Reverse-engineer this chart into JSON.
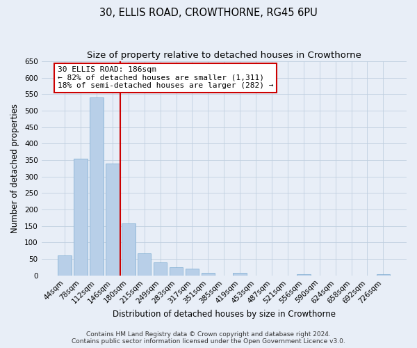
{
  "title": "30, ELLIS ROAD, CROWTHORNE, RG45 6PU",
  "subtitle": "Size of property relative to detached houses in Crowthorne",
  "xlabel": "Distribution of detached houses by size in Crowthorne",
  "ylabel": "Number of detached properties",
  "bar_labels": [
    "44sqm",
    "78sqm",
    "112sqm",
    "146sqm",
    "180sqm",
    "215sqm",
    "249sqm",
    "283sqm",
    "317sqm",
    "351sqm",
    "385sqm",
    "419sqm",
    "453sqm",
    "487sqm",
    "521sqm",
    "556sqm",
    "590sqm",
    "624sqm",
    "658sqm",
    "692sqm",
    "726sqm"
  ],
  "bar_values": [
    60,
    355,
    540,
    340,
    157,
    68,
    40,
    25,
    20,
    8,
    0,
    8,
    0,
    0,
    0,
    3,
    0,
    0,
    0,
    0,
    3
  ],
  "bar_color": "#b8cfe8",
  "bar_edge_color": "#7aaad0",
  "vline_x_index": 4,
  "vline_color": "#cc0000",
  "annotation_text": "30 ELLIS ROAD: 186sqm\n← 82% of detached houses are smaller (1,311)\n18% of semi-detached houses are larger (282) →",
  "annotation_box_color": "#ffffff",
  "annotation_box_edge_color": "#cc0000",
  "ylim": [
    0,
    650
  ],
  "yticks": [
    0,
    50,
    100,
    150,
    200,
    250,
    300,
    350,
    400,
    450,
    500,
    550,
    600,
    650
  ],
  "footer_line1": "Contains HM Land Registry data © Crown copyright and database right 2024.",
  "footer_line2": "Contains public sector information licensed under the Open Government Licence v3.0.",
  "bg_color": "#e8eef7",
  "plot_bg_color": "#e8eef7",
  "title_fontsize": 10.5,
  "subtitle_fontsize": 9.5,
  "axis_label_fontsize": 8.5,
  "tick_fontsize": 7.5,
  "footer_fontsize": 6.5
}
